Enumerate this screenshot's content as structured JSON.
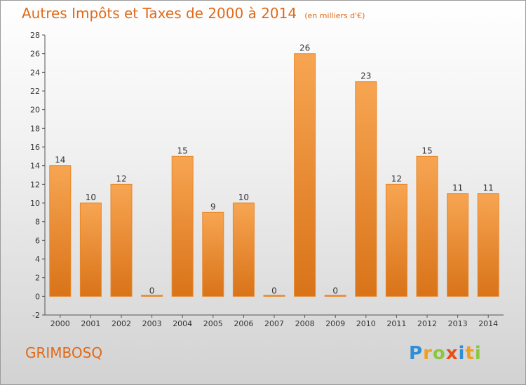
{
  "chart_data": {
    "type": "bar",
    "title": "Autres Impôts et Taxes de 2000 à 2014",
    "subtitle": "(en milliers d'€)",
    "categories": [
      "2000",
      "2001",
      "2002",
      "2003",
      "2004",
      "2005",
      "2006",
      "2007",
      "2008",
      "2009",
      "2010",
      "2011",
      "2012",
      "2013",
      "2014"
    ],
    "values": [
      14,
      10,
      12,
      0,
      15,
      9,
      10,
      0,
      26,
      0,
      23,
      12,
      15,
      11,
      11
    ],
    "ylim": [
      -2,
      28
    ],
    "yticks": [
      -2,
      0,
      2,
      4,
      6,
      8,
      10,
      12,
      14,
      16,
      18,
      20,
      22,
      24,
      26,
      28
    ],
    "grid": false,
    "bar_color": "#f0932e"
  },
  "footer": {
    "commune": "GRIMBOSQ",
    "brand_letters": [
      {
        "ch": "P",
        "color": "#2e8fd6"
      },
      {
        "ch": "r",
        "color": "#f0a020"
      },
      {
        "ch": "o",
        "color": "#8cc63f"
      },
      {
        "ch": "x",
        "color": "#e94e1b"
      },
      {
        "ch": "i",
        "color": "#2e8fd6"
      },
      {
        "ch": "t",
        "color": "#f0a020"
      },
      {
        "ch": "i",
        "color": "#8cc63f"
      }
    ]
  }
}
